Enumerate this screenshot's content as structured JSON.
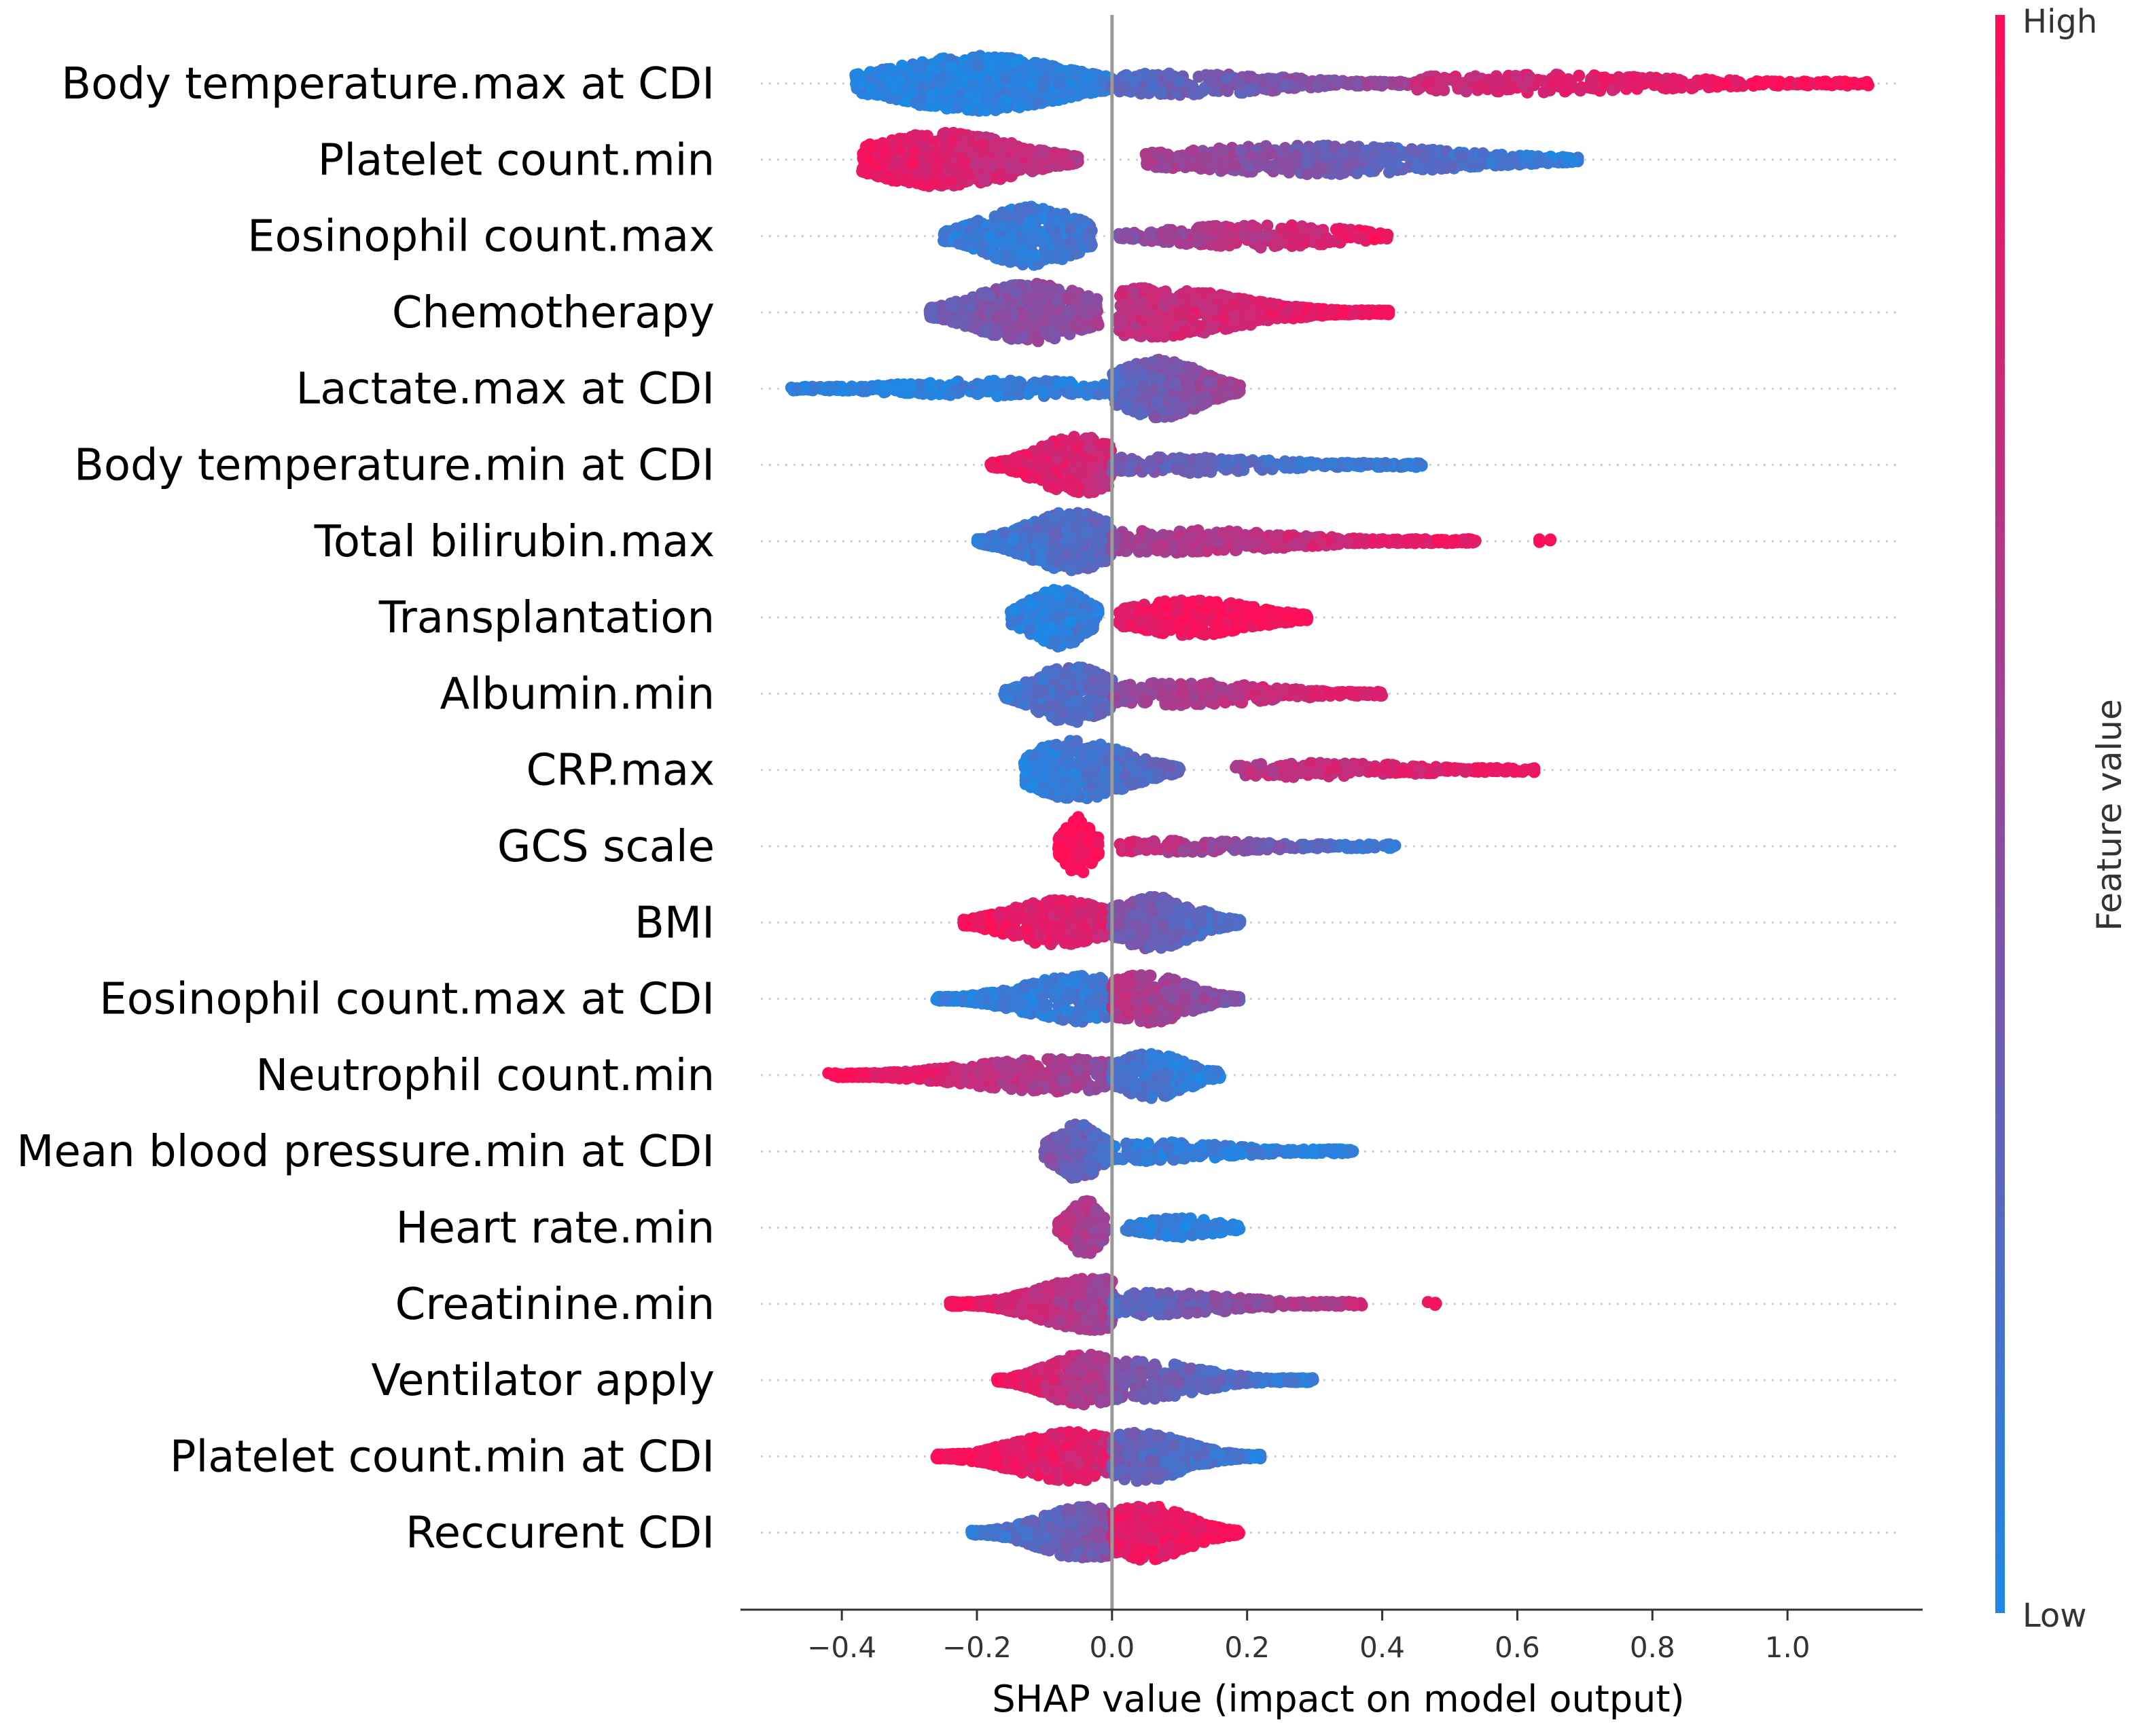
{
  "chart_data": {
    "type": "scatter",
    "subtype": "shap-beeswarm",
    "xlabel": "SHAP value (impact on model output)",
    "xlim": [
      -0.55,
      1.2
    ],
    "xticks": [
      -0.4,
      -0.2,
      0.0,
      0.2,
      0.4,
      0.6,
      0.8,
      1.0
    ],
    "xtick_labels": [
      "−0.4",
      "−0.2",
      "0.0",
      "0.2",
      "0.4",
      "0.6",
      "0.8",
      "1.0"
    ],
    "zero_line": 0.0,
    "colorbar": {
      "title": "Feature value",
      "high_label": "High",
      "low_label": "Low",
      "low_color": "#1e88e5",
      "high_color": "#ff0d57"
    },
    "features": [
      {
        "name": "Body temperature.max at CDI",
        "segments": [
          {
            "from": -0.38,
            "to": 0.0,
            "center": -0.2,
            "peak": 0.85,
            "density": 2.2,
            "c0": 0.02,
            "c1": 0.08
          },
          {
            "from": 0.0,
            "to": 0.45,
            "center": 0.1,
            "peak": 0.35,
            "density": 0.9,
            "c0": 0.25,
            "c1": 0.55
          },
          {
            "from": 0.45,
            "to": 1.12,
            "center": 0.62,
            "peak": 0.28,
            "density": 0.7,
            "c0": 0.75,
            "c1": 1.0
          }
        ]
      },
      {
        "name": "Platelet count.min",
        "segments": [
          {
            "from": -0.37,
            "to": -0.05,
            "center": -0.25,
            "peak": 0.85,
            "density": 1.8,
            "c0": 0.95,
            "c1": 0.65
          },
          {
            "from": 0.05,
            "to": 0.69,
            "center": 0.3,
            "peak": 0.45,
            "density": 1.0,
            "c0": 0.6,
            "c1": 0.05
          }
        ]
      },
      {
        "name": "Eosinophil count.max",
        "segments": [
          {
            "from": -0.25,
            "to": -0.03,
            "center": -0.12,
            "peak": 0.9,
            "density": 1.6,
            "c0": 0.08,
            "c1": 0.15
          },
          {
            "from": 0.01,
            "to": 0.41,
            "center": 0.22,
            "peak": 0.35,
            "density": 1.0,
            "c0": 0.45,
            "c1": 0.95
          }
        ]
      },
      {
        "name": "Chemotherapy",
        "segments": [
          {
            "from": -0.27,
            "to": -0.02,
            "center": -0.12,
            "peak": 0.9,
            "density": 2.0,
            "c0": 0.35,
            "c1": 0.55
          },
          {
            "from": 0.01,
            "to": 0.41,
            "center": 0.06,
            "peak": 0.75,
            "density": 1.6,
            "c0": 0.7,
            "c1": 0.95
          }
        ]
      },
      {
        "name": "Lactate.max at CDI",
        "segments": [
          {
            "from": -0.48,
            "to": 0.0,
            "center": -0.15,
            "peak": 0.25,
            "density": 1.1,
            "c0": 0.03,
            "c1": 0.1
          },
          {
            "from": 0.0,
            "to": 0.19,
            "center": 0.07,
            "peak": 0.9,
            "density": 2.4,
            "c0": 0.25,
            "c1": 0.6
          }
        ]
      },
      {
        "name": "Body temperature.min at CDI",
        "segments": [
          {
            "from": -0.18,
            "to": 0.0,
            "center": -0.05,
            "peak": 0.9,
            "density": 1.8,
            "c0": 0.95,
            "c1": 0.75
          },
          {
            "from": 0.0,
            "to": 0.46,
            "center": 0.08,
            "peak": 0.25,
            "density": 0.9,
            "c0": 0.4,
            "c1": 0.05
          }
        ]
      },
      {
        "name": "Total bilirubin.max",
        "segments": [
          {
            "from": -0.2,
            "to": 0.0,
            "center": -0.06,
            "peak": 0.9,
            "density": 1.8,
            "c0": 0.1,
            "c1": 0.3
          },
          {
            "from": 0.0,
            "to": 0.54,
            "center": 0.08,
            "peak": 0.35,
            "density": 1.0,
            "c0": 0.55,
            "c1": 0.95
          },
          {
            "from": 0.63,
            "to": 0.65,
            "center": 0.64,
            "peak": 0.1,
            "density": 0.4,
            "c0": 1.0,
            "c1": 1.0
          }
        ]
      },
      {
        "name": "Transplantation",
        "segments": [
          {
            "from": -0.15,
            "to": -0.02,
            "center": -0.08,
            "peak": 0.9,
            "density": 2.4,
            "c0": 0.05,
            "c1": 0.1
          },
          {
            "from": 0.01,
            "to": 0.29,
            "center": 0.12,
            "peak": 0.55,
            "density": 1.8,
            "c0": 0.9,
            "c1": 1.0
          }
        ]
      },
      {
        "name": "Albumin.min",
        "segments": [
          {
            "from": -0.16,
            "to": 0.0,
            "center": -0.06,
            "peak": 0.9,
            "density": 1.8,
            "c0": 0.15,
            "c1": 0.3
          },
          {
            "from": 0.0,
            "to": 0.4,
            "center": 0.1,
            "peak": 0.35,
            "density": 1.0,
            "c0": 0.5,
            "c1": 0.9
          }
        ]
      },
      {
        "name": "CRP.max",
        "segments": [
          {
            "from": -0.13,
            "to": 0.1,
            "center": -0.05,
            "peak": 0.9,
            "density": 1.6,
            "c0": 0.05,
            "c1": 0.3
          },
          {
            "from": 0.18,
            "to": 0.63,
            "center": 0.3,
            "peak": 0.22,
            "density": 0.9,
            "c0": 0.65,
            "c1": 0.98
          }
        ]
      },
      {
        "name": "GCS scale",
        "segments": [
          {
            "from": -0.08,
            "to": -0.02,
            "center": -0.05,
            "peak": 0.9,
            "density": 2.6,
            "c0": 1.0,
            "c1": 0.95
          },
          {
            "from": 0.01,
            "to": 0.42,
            "center": 0.1,
            "peak": 0.18,
            "density": 0.9,
            "c0": 0.8,
            "c1": 0.05
          }
        ]
      },
      {
        "name": "BMI",
        "segments": [
          {
            "from": -0.22,
            "to": 0.0,
            "center": -0.08,
            "peak": 0.7,
            "density": 1.8,
            "c0": 0.95,
            "c1": 0.8
          },
          {
            "from": 0.0,
            "to": 0.19,
            "center": 0.06,
            "peak": 0.8,
            "density": 1.8,
            "c0": 0.45,
            "c1": 0.15
          }
        ]
      },
      {
        "name": "Eosinophil count.max at CDI",
        "segments": [
          {
            "from": -0.26,
            "to": 0.0,
            "center": -0.05,
            "peak": 0.7,
            "density": 1.6,
            "c0": 0.03,
            "c1": 0.15
          },
          {
            "from": 0.0,
            "to": 0.19,
            "center": 0.05,
            "peak": 0.75,
            "density": 1.8,
            "c0": 0.7,
            "c1": 0.4
          }
        ]
      },
      {
        "name": "Neutrophil count.min",
        "segments": [
          {
            "from": -0.42,
            "to": 0.0,
            "center": -0.08,
            "peak": 0.5,
            "density": 1.4,
            "c0": 1.0,
            "c1": 0.5
          },
          {
            "from": 0.0,
            "to": 0.16,
            "center": 0.06,
            "peak": 0.7,
            "density": 1.8,
            "c0": 0.2,
            "c1": 0.05
          }
        ]
      },
      {
        "name": "Mean blood pressure.min at CDI",
        "segments": [
          {
            "from": -0.1,
            "to": 0.0,
            "center": -0.05,
            "peak": 0.85,
            "density": 2.0,
            "c0": 0.45,
            "c1": 0.2
          },
          {
            "from": 0.0,
            "to": 0.36,
            "center": 0.05,
            "peak": 0.3,
            "density": 1.0,
            "c0": 0.12,
            "c1": 0.03
          }
        ]
      },
      {
        "name": "Heart rate.min",
        "segments": [
          {
            "from": -0.08,
            "to": -0.01,
            "center": -0.04,
            "peak": 0.85,
            "density": 2.4,
            "c0": 0.75,
            "c1": 0.5
          },
          {
            "from": 0.02,
            "to": 0.19,
            "center": 0.1,
            "peak": 0.3,
            "density": 1.2,
            "c0": 0.1,
            "c1": 0.05
          }
        ]
      },
      {
        "name": "Creatinine.min",
        "segments": [
          {
            "from": -0.24,
            "to": 0.0,
            "center": -0.03,
            "peak": 0.8,
            "density": 2.0,
            "c0": 0.95,
            "c1": 0.55
          },
          {
            "from": 0.0,
            "to": 0.37,
            "center": 0.06,
            "peak": 0.35,
            "density": 1.1,
            "c0": 0.2,
            "c1": 0.75
          },
          {
            "from": 0.46,
            "to": 0.48,
            "center": 0.47,
            "peak": 0.1,
            "density": 0.4,
            "c0": 1.0,
            "c1": 1.0
          }
        ]
      },
      {
        "name": "Ventilator apply",
        "segments": [
          {
            "from": -0.17,
            "to": 0.0,
            "center": -0.04,
            "peak": 0.8,
            "density": 1.8,
            "c0": 0.95,
            "c1": 0.55
          },
          {
            "from": 0.0,
            "to": 0.3,
            "center": 0.03,
            "peak": 0.6,
            "density": 1.4,
            "c0": 0.45,
            "c1": 0.08
          }
        ]
      },
      {
        "name": "Platelet count.min at CDI",
        "segments": [
          {
            "from": -0.26,
            "to": 0.0,
            "center": -0.06,
            "peak": 0.75,
            "density": 1.8,
            "c0": 1.0,
            "c1": 0.8
          },
          {
            "from": 0.0,
            "to": 0.22,
            "center": 0.04,
            "peak": 0.75,
            "density": 1.6,
            "c0": 0.35,
            "c1": 0.08
          }
        ]
      },
      {
        "name": "Reccurent CDI",
        "segments": [
          {
            "from": -0.21,
            "to": 0.0,
            "center": -0.04,
            "peak": 0.8,
            "density": 1.8,
            "c0": 0.1,
            "c1": 0.45
          },
          {
            "from": 0.0,
            "to": 0.19,
            "center": 0.05,
            "peak": 0.85,
            "density": 2.0,
            "c0": 0.85,
            "c1": 1.0
          }
        ]
      }
    ]
  }
}
